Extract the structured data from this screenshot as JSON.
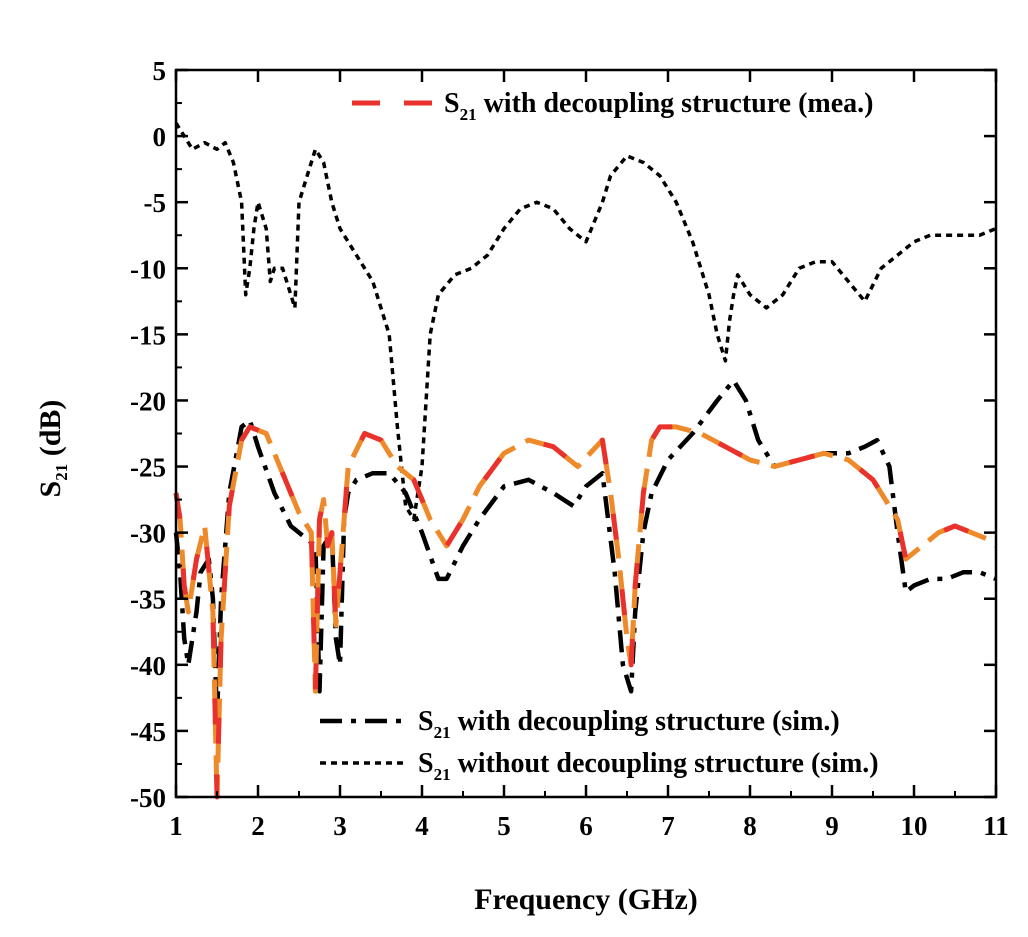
{
  "chart_data": {
    "type": "line",
    "xlabel": "Frequency (GHz)",
    "ylabel": {
      "base": "S",
      "sub": "21",
      "rest": " (dB)"
    },
    "xlim": [
      1,
      11
    ],
    "ylim": [
      -50,
      5
    ],
    "xticks": [
      1,
      2,
      3,
      4,
      5,
      6,
      7,
      8,
      9,
      10,
      11
    ],
    "yticks": [
      5,
      0,
      -5,
      -10,
      -15,
      -20,
      -25,
      -30,
      -35,
      -40,
      -45,
      -50
    ],
    "grid": false,
    "series": [
      {
        "legend": {
          "base": "S",
          "sub": "21",
          "rest": " with decoupling structure (mea.)"
        },
        "color": "#e8322b",
        "color_alt": "#ef8a2a",
        "style": "dashed",
        "x": [
          1.0,
          1.05,
          1.1,
          1.15,
          1.25,
          1.35,
          1.45,
          1.5,
          1.55,
          1.65,
          1.8,
          1.9,
          2.1,
          2.3,
          2.5,
          2.65,
          2.7,
          2.75,
          2.8,
          2.85,
          2.9,
          2.95,
          3.0,
          3.1,
          3.3,
          3.5,
          3.7,
          3.9,
          4.1,
          4.3,
          4.5,
          4.7,
          5.0,
          5.3,
          5.6,
          5.9,
          6.2,
          6.3,
          6.4,
          6.5,
          6.55,
          6.6,
          6.7,
          6.8,
          6.9,
          7.1,
          7.4,
          7.7,
          8.0,
          8.3,
          8.6,
          8.9,
          9.2,
          9.5,
          9.7,
          9.8,
          9.9,
          10.1,
          10.3,
          10.5,
          10.7,
          10.9,
          11.0
        ],
        "y": [
          -27,
          -29,
          -34,
          -36,
          -32,
          -29.5,
          -36,
          -50,
          -38,
          -28,
          -23,
          -22,
          -22.5,
          -25.5,
          -28.5,
          -30,
          -42,
          -29,
          -27.5,
          -31,
          -30,
          -37,
          -33,
          -25,
          -22.5,
          -23,
          -25,
          -26,
          -29,
          -31,
          -29,
          -26.5,
          -24,
          -23,
          -23.5,
          -25,
          -23,
          -27,
          -32,
          -38,
          -40,
          -34,
          -27,
          -23,
          -22,
          -22,
          -22.5,
          -23.5,
          -24.5,
          -25,
          -24.5,
          -24,
          -24.5,
          -26,
          -28,
          -29,
          -32,
          -31,
          -30,
          -29.5,
          -30,
          -30.5,
          -31
        ]
      },
      {
        "legend": {
          "base": "S",
          "sub": "21",
          "rest": " with decoupling structure (sim.)"
        },
        "color": "#000000",
        "style": "dashdot",
        "x": [
          1.0,
          1.05,
          1.1,
          1.15,
          1.2,
          1.25,
          1.3,
          1.4,
          1.45,
          1.5,
          1.55,
          1.65,
          1.8,
          1.9,
          2.0,
          2.2,
          2.4,
          2.6,
          2.7,
          2.75,
          2.8,
          2.9,
          2.95,
          3.0,
          3.05,
          3.1,
          3.2,
          3.4,
          3.6,
          3.8,
          4.0,
          4.2,
          4.3,
          4.5,
          4.7,
          5.0,
          5.3,
          5.6,
          5.85,
          6.0,
          6.2,
          6.35,
          6.45,
          6.55,
          6.6,
          6.7,
          6.8,
          7.0,
          7.3,
          7.6,
          7.8,
          7.95,
          8.1,
          8.3,
          8.6,
          8.9,
          9.2,
          9.4,
          9.55,
          9.7,
          9.8,
          9.9,
          10.0,
          10.2,
          10.4,
          10.6,
          10.8,
          11.0
        ],
        "y": [
          -30,
          -33,
          -38,
          -40,
          -38,
          -36,
          -33,
          -32,
          -35,
          -44,
          -35,
          -27,
          -22,
          -21.5,
          -23.5,
          -27,
          -29.5,
          -30.5,
          -31,
          -42,
          -31,
          -30,
          -38,
          -40,
          -29,
          -27,
          -26,
          -25.5,
          -25.5,
          -27,
          -30,
          -33.5,
          -33.5,
          -31,
          -29,
          -26.5,
          -26,
          -27,
          -28,
          -26.5,
          -25.5,
          -33,
          -40,
          -42,
          -36,
          -30,
          -27,
          -24.5,
          -22.5,
          -20,
          -18.5,
          -20,
          -23,
          -25,
          -24.5,
          -24,
          -24,
          -23.5,
          -23,
          -25,
          -30,
          -34.5,
          -34,
          -33.5,
          -33.5,
          -33,
          -33,
          -33.5
        ]
      },
      {
        "legend": {
          "base": "S",
          "sub": "21",
          "rest": " without decoupling structure (sim.)"
        },
        "color": "#000000",
        "style": "dotted",
        "x": [
          1.0,
          1.1,
          1.2,
          1.35,
          1.5,
          1.6,
          1.7,
          1.8,
          1.85,
          1.9,
          1.95,
          2.0,
          2.05,
          2.1,
          2.15,
          2.2,
          2.3,
          2.4,
          2.45,
          2.5,
          2.6,
          2.7,
          2.8,
          2.9,
          3.0,
          3.2,
          3.4,
          3.6,
          3.7,
          3.8,
          3.9,
          4.0,
          4.1,
          4.2,
          4.4,
          4.6,
          4.8,
          5.0,
          5.2,
          5.4,
          5.6,
          5.8,
          6.0,
          6.2,
          6.3,
          6.5,
          6.7,
          6.9,
          7.1,
          7.3,
          7.5,
          7.6,
          7.7,
          7.75,
          7.8,
          7.85,
          7.9,
          8.0,
          8.2,
          8.4,
          8.6,
          8.8,
          9.0,
          9.2,
          9.4,
          9.6,
          9.8,
          10.0,
          10.2,
          10.5,
          10.8,
          11.0
        ],
        "y": [
          1,
          0,
          -1,
          -0.5,
          -1,
          -0.5,
          -2,
          -5,
          -12,
          -10,
          -7,
          -5,
          -6,
          -7,
          -11,
          -10,
          -10,
          -12,
          -13,
          -5,
          -3,
          -1,
          -2,
          -5,
          -7,
          -9,
          -11,
          -15,
          -22,
          -28,
          -29,
          -25,
          -15,
          -12,
          -10.5,
          -10,
          -9,
          -7,
          -5.5,
          -5,
          -5.5,
          -7,
          -8,
          -5,
          -3,
          -1.5,
          -2,
          -3,
          -5,
          -8,
          -12,
          -15,
          -17,
          -14,
          -12,
          -10.5,
          -11,
          -12,
          -13,
          -12,
          -10,
          -9.5,
          -9.5,
          -11,
          -12.5,
          -10,
          -9,
          -8,
          -7.5,
          -7.5,
          -7.5,
          -7
        ]
      }
    ]
  }
}
